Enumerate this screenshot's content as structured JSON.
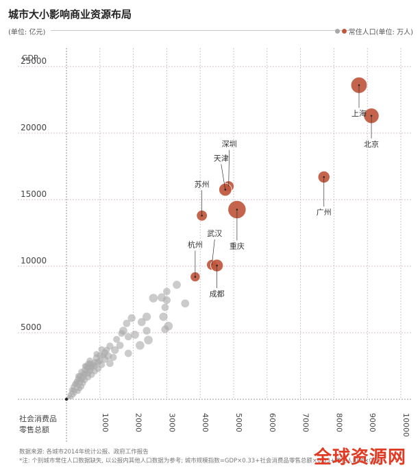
{
  "header": {
    "title": "城市大小影响商业资源布局",
    "unit_left": "(单位: 亿元)",
    "legend_label": "常住人口(单位: 万人)"
  },
  "colors": {
    "city_bubble": "#c0573d",
    "other_bubble": "#a8a8a8",
    "grid": "#c9b3c2"
  },
  "chart_data": {
    "type": "scatter",
    "ylabel": "GDP",
    "xlabel": "社会消费品零售总额",
    "xlim": [
      0,
      10000
    ],
    "ylim": [
      0,
      25000
    ],
    "x_ticks": [
      "1000",
      "2000",
      "3000",
      "4000",
      "5000",
      "6000",
      "7000",
      "8000",
      "9000",
      "10000"
    ],
    "y_ticks": [
      "5000",
      "10000",
      "15000",
      "20000",
      "25000"
    ],
    "cities": [
      {
        "name": "上海",
        "x": 8750,
        "y": 23600,
        "pop": 2425
      },
      {
        "name": "北京",
        "x": 9120,
        "y": 21300,
        "pop": 2150
      },
      {
        "name": "广州",
        "x": 7700,
        "y": 16700,
        "pop": 1300
      },
      {
        "name": "深圳",
        "x": 4850,
        "y": 16000,
        "pop": 1080
      },
      {
        "name": "天津",
        "x": 4750,
        "y": 15750,
        "pop": 1500
      },
      {
        "name": "重庆",
        "x": 5100,
        "y": 14250,
        "pop": 3000
      },
      {
        "name": "苏州",
        "x": 4050,
        "y": 13800,
        "pop": 1060
      },
      {
        "name": "武汉",
        "x": 4350,
        "y": 10100,
        "pop": 1030
      },
      {
        "name": "成都",
        "x": 4500,
        "y": 10050,
        "pop": 1440
      },
      {
        "name": "杭州",
        "x": 3850,
        "y": 9200,
        "pop": 890
      }
    ],
    "others": [
      [
        3300,
        8600,
        600
      ],
      [
        3000,
        8100,
        500
      ],
      [
        2850,
        7650,
        650
      ],
      [
        2600,
        7600,
        700
      ],
      [
        3000,
        7450,
        550
      ],
      [
        3550,
        7200,
        600
      ],
      [
        2950,
        6900,
        500
      ],
      [
        2900,
        6200,
        650
      ],
      [
        2400,
        6200,
        650
      ],
      [
        1950,
        6100,
        550
      ],
      [
        2250,
        5800,
        600
      ],
      [
        1800,
        5700,
        500
      ],
      [
        3050,
        5500,
        700
      ],
      [
        2950,
        5250,
        550
      ],
      [
        2400,
        5150,
        550
      ],
      [
        1700,
        5150,
        600
      ],
      [
        1650,
        4950,
        450
      ],
      [
        2050,
        4850,
        600
      ],
      [
        1850,
        4700,
        500
      ],
      [
        1500,
        4500,
        450
      ],
      [
        2450,
        4450,
        700
      ],
      [
        2200,
        4050,
        700
      ],
      [
        1300,
        4000,
        450
      ],
      [
        1600,
        4050,
        500
      ],
      [
        1050,
        3750,
        400
      ],
      [
        1450,
        3700,
        550
      ],
      [
        1150,
        3500,
        450
      ],
      [
        1850,
        3450,
        500
      ],
      [
        1000,
        3300,
        400
      ],
      [
        1250,
        3250,
        500
      ],
      [
        1400,
        3150,
        450
      ],
      [
        900,
        3100,
        500
      ],
      [
        1150,
        3000,
        450
      ],
      [
        1000,
        2900,
        400
      ],
      [
        700,
        2900,
        400
      ],
      [
        850,
        2750,
        450
      ],
      [
        1300,
        2700,
        500
      ],
      [
        650,
        2650,
        400
      ],
      [
        1050,
        2600,
        450
      ],
      [
        850,
        2500,
        400
      ],
      [
        600,
        2450,
        450
      ],
      [
        750,
        2350,
        400
      ],
      [
        950,
        2300,
        400
      ],
      [
        550,
        2200,
        400
      ],
      [
        700,
        2150,
        450
      ],
      [
        850,
        2100,
        350
      ],
      [
        450,
        2050,
        400
      ],
      [
        650,
        1950,
        400
      ],
      [
        550,
        1850,
        350
      ],
      [
        750,
        1850,
        400
      ],
      [
        400,
        1750,
        350
      ],
      [
        500,
        1650,
        400
      ],
      [
        650,
        1650,
        350
      ],
      [
        350,
        1550,
        350
      ],
      [
        450,
        1450,
        350
      ],
      [
        550,
        1450,
        350
      ],
      [
        300,
        1350,
        300
      ],
      [
        400,
        1250,
        350
      ],
      [
        500,
        1200,
        300
      ],
      [
        250,
        1150,
        300
      ],
      [
        350,
        1050,
        300
      ],
      [
        450,
        950,
        300
      ],
      [
        200,
        950,
        250
      ],
      [
        300,
        850,
        300
      ],
      [
        400,
        800,
        250
      ],
      [
        150,
        700,
        250
      ],
      [
        250,
        650,
        250
      ],
      [
        350,
        600,
        250
      ],
      [
        150,
        500,
        200
      ],
      [
        250,
        450,
        200
      ],
      [
        100,
        350,
        200
      ],
      [
        200,
        300,
        200
      ],
      [
        80,
        180,
        150
      ],
      [
        150,
        150,
        150
      ],
      [
        50,
        80,
        100
      ],
      [
        650,
        2400,
        350
      ],
      [
        800,
        2600,
        400
      ],
      [
        500,
        1900,
        350
      ],
      [
        950,
        2800,
        400
      ],
      [
        1100,
        3300,
        350
      ],
      [
        300,
        1200,
        350
      ],
      [
        600,
        2100,
        300
      ],
      [
        750,
        2450,
        350
      ],
      [
        400,
        1500,
        300
      ],
      [
        200,
        700,
        250
      ],
      [
        1200,
        3700,
        400
      ],
      [
        700,
        2700,
        350
      ],
      [
        900,
        3400,
        350
      ],
      [
        550,
        2500,
        300
      ],
      [
        350,
        1750,
        300
      ]
    ]
  },
  "footer": {
    "source": "数据来源: 各城市2014年统计公报、政府工作报告",
    "note": "*注: 个别城市常住人口数据缺失, 以公报内其他人口数据为参考; 城市规模指数=GDP×0.33+社会消费品零售总额×0.33+常住人口数×0.33"
  },
  "watermark": "全球资源网"
}
